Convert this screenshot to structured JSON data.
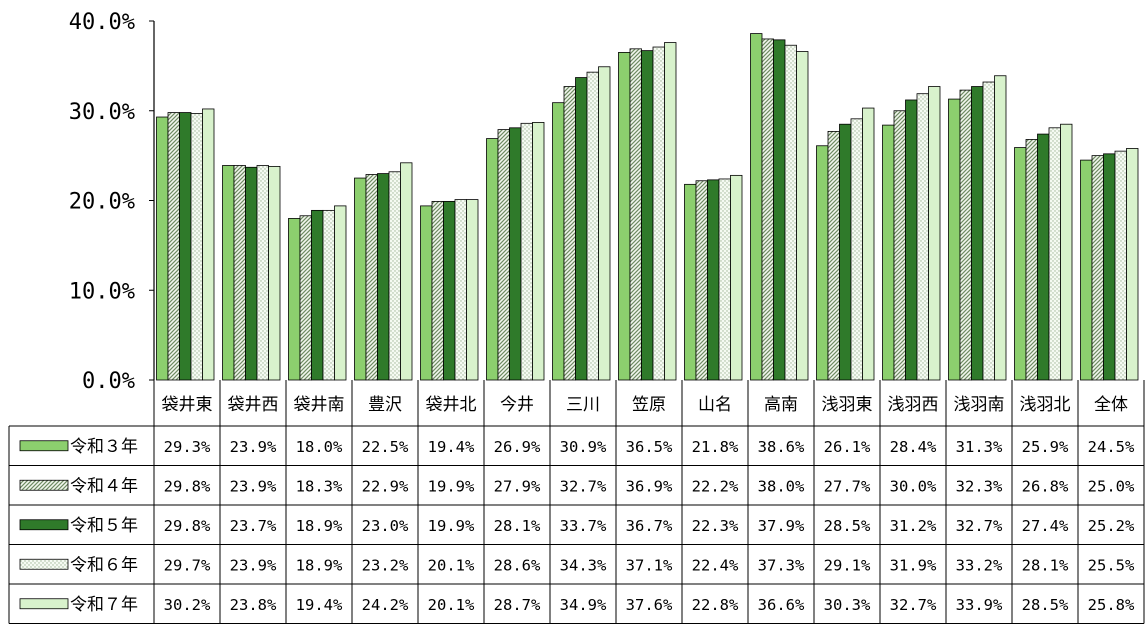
{
  "chart_data": {
    "type": "bar",
    "categories": [
      "袋井東",
      "袋井西",
      "袋井南",
      "豊沢",
      "袋井北",
      "今井",
      "三川",
      "笠原",
      "山名",
      "高南",
      "浅羽東",
      "浅羽西",
      "浅羽南",
      "浅羽北",
      "全体"
    ],
    "ylim": [
      0,
      40
    ],
    "y_ticks": [
      "0.0%",
      "10.0%",
      "20.0%",
      "30.0%",
      "40.0%"
    ],
    "grid": false,
    "legend_placement": "data-table-left",
    "series": [
      {
        "name": "令和３年",
        "pattern": "solid",
        "color": "#8ccf6e",
        "values": [
          29.3,
          23.9,
          18.0,
          22.5,
          19.4,
          26.9,
          30.9,
          36.5,
          21.8,
          38.6,
          26.1,
          28.4,
          31.3,
          25.9,
          24.5
        ],
        "labels": [
          "29.3%",
          "23.9%",
          "18.0%",
          "22.5%",
          "19.4%",
          "26.9%",
          "30.9%",
          "36.5%",
          "21.8%",
          "38.6%",
          "26.1%",
          "28.4%",
          "31.3%",
          "25.9%",
          "24.5%"
        ]
      },
      {
        "name": "令和４年",
        "pattern": "diagonal-hatch",
        "color": "#8fa07f",
        "values": [
          29.8,
          23.9,
          18.3,
          22.9,
          19.9,
          27.9,
          32.7,
          36.9,
          22.2,
          38.0,
          27.7,
          30.0,
          32.3,
          26.8,
          25.0
        ],
        "labels": [
          "29.8%",
          "23.9%",
          "18.3%",
          "22.9%",
          "19.9%",
          "27.9%",
          "32.7%",
          "36.9%",
          "22.2%",
          "38.0%",
          "27.7%",
          "30.0%",
          "32.3%",
          "26.8%",
          "25.0%"
        ]
      },
      {
        "name": "令和５年",
        "pattern": "solid",
        "color": "#2f7a2a",
        "values": [
          29.8,
          23.7,
          18.9,
          23.0,
          19.9,
          28.1,
          33.7,
          36.7,
          22.3,
          37.9,
          28.5,
          31.2,
          32.7,
          27.4,
          25.2
        ],
        "labels": [
          "29.8%",
          "23.7%",
          "18.9%",
          "23.0%",
          "19.9%",
          "28.1%",
          "33.7%",
          "36.7%",
          "22.3%",
          "37.9%",
          "28.5%",
          "31.2%",
          "32.7%",
          "27.4%",
          "25.2%"
        ]
      },
      {
        "name": "令和６年",
        "pattern": "dotted",
        "color": "#c9d7c2",
        "values": [
          29.7,
          23.9,
          18.9,
          23.2,
          20.1,
          28.6,
          34.3,
          37.1,
          22.4,
          37.3,
          29.1,
          31.9,
          33.2,
          28.1,
          25.5
        ],
        "labels": [
          "29.7%",
          "23.9%",
          "18.9%",
          "23.2%",
          "20.1%",
          "28.6%",
          "34.3%",
          "37.1%",
          "22.4%",
          "37.3%",
          "29.1%",
          "31.9%",
          "33.2%",
          "28.1%",
          "25.5%"
        ]
      },
      {
        "name": "令和７年",
        "pattern": "solid",
        "color": "#d8f2cc",
        "values": [
          30.2,
          23.8,
          19.4,
          24.2,
          20.1,
          28.7,
          34.9,
          37.6,
          22.8,
          36.6,
          30.3,
          32.7,
          33.9,
          28.5,
          25.8
        ],
        "labels": [
          "30.2%",
          "23.8%",
          "19.4%",
          "24.2%",
          "20.1%",
          "28.7%",
          "34.9%",
          "37.6%",
          "22.8%",
          "36.6%",
          "30.3%",
          "32.7%",
          "33.9%",
          "28.5%",
          "25.8%"
        ]
      }
    ]
  }
}
